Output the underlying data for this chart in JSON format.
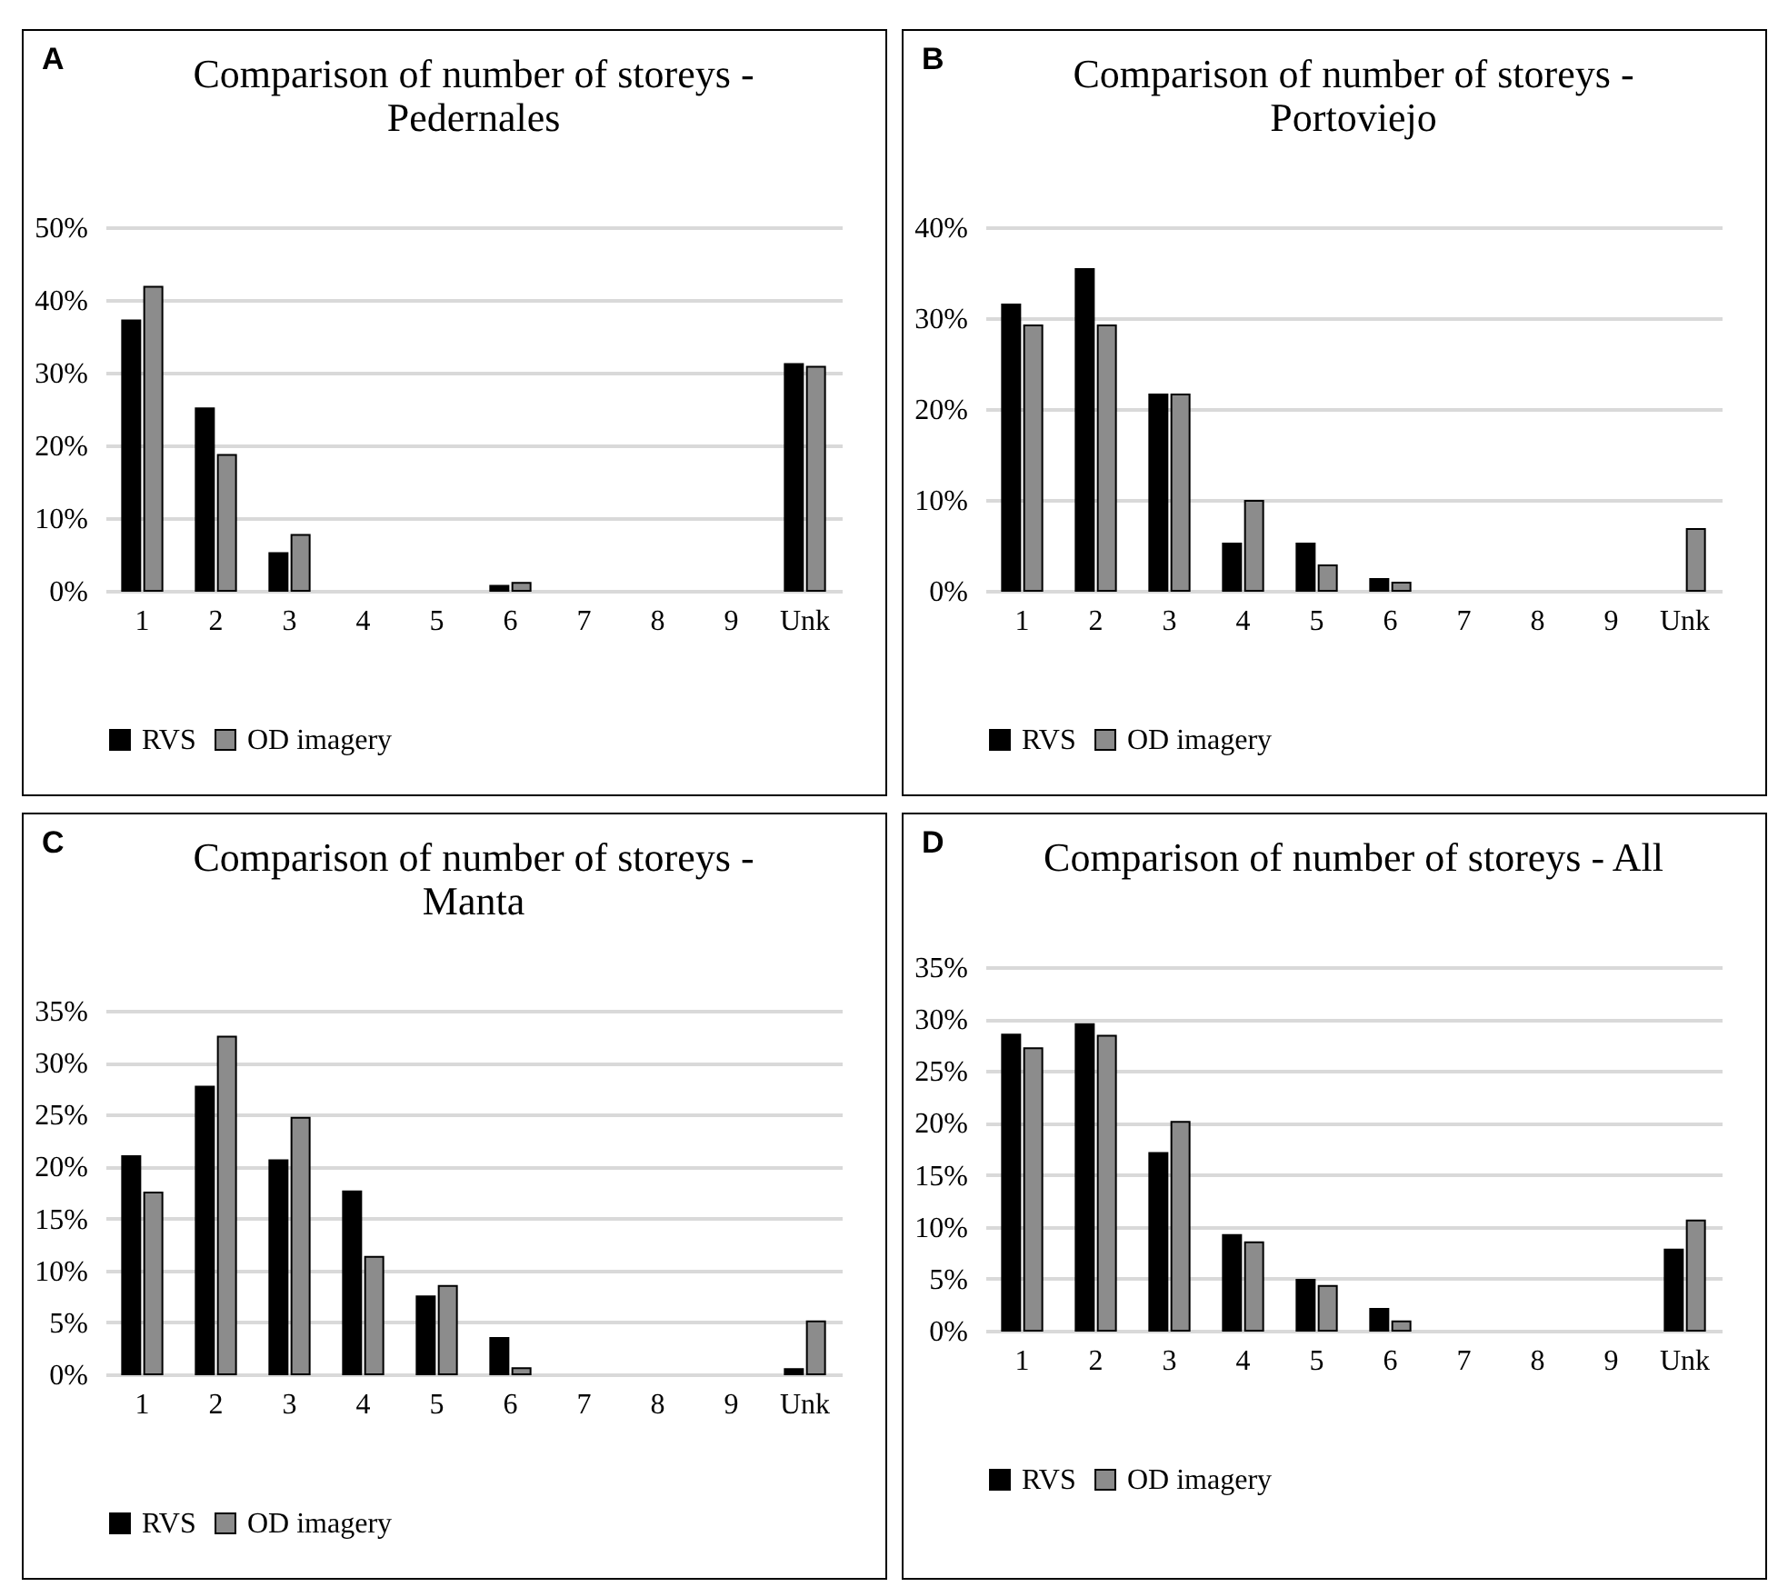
{
  "chart_data": [
    {
      "type": "bar",
      "title": "Comparison of number of storeys - Pedernales",
      "annotations": [
        "A"
      ],
      "categories": [
        "1",
        "2",
        "3",
        "4",
        "5",
        "6",
        "7",
        "8",
        "9",
        "Unk"
      ],
      "series": [
        {
          "name": "RVS",
          "color": "#000000",
          "values": [
            37.2,
            25.1,
            5.2,
            0,
            0,
            0.7,
            0,
            0,
            0,
            31.2
          ]
        },
        {
          "name": "OD imagery",
          "color": "#8c8c8c",
          "values": [
            41.8,
            18.7,
            7.7,
            0,
            0,
            1.1,
            0,
            0,
            0,
            30.8
          ]
        }
      ],
      "ylim": [
        0,
        50
      ],
      "yticks": [
        {
          "value": 0,
          "label": "0%"
        },
        {
          "value": 10,
          "label": "10%"
        },
        {
          "value": 20,
          "label": "20%"
        },
        {
          "value": 30,
          "label": "30%"
        },
        {
          "value": 40,
          "label": "40%"
        },
        {
          "value": 50,
          "label": "50%"
        }
      ],
      "grid": "y",
      "legend": "bottom"
    },
    {
      "type": "bar",
      "title": "Comparison of number of storeys - Portoviejo",
      "annotations": [
        "B"
      ],
      "categories": [
        "1",
        "2",
        "3",
        "4",
        "5",
        "6",
        "7",
        "8",
        "9",
        "Unk"
      ],
      "series": [
        {
          "name": "RVS",
          "color": "#000000",
          "values": [
            31.5,
            35.4,
            21.6,
            5.2,
            5.2,
            1.3,
            0,
            0,
            0,
            0
          ]
        },
        {
          "name": "OD imagery",
          "color": "#8c8c8c",
          "values": [
            29.2,
            29.2,
            21.6,
            9.9,
            2.8,
            0.9,
            0,
            0,
            0,
            6.8
          ]
        }
      ],
      "ylim": [
        0,
        40
      ],
      "yticks": [
        {
          "value": 0,
          "label": "0%"
        },
        {
          "value": 10,
          "label": "10%"
        },
        {
          "value": 20,
          "label": "20%"
        },
        {
          "value": 30,
          "label": "30%"
        },
        {
          "value": 40,
          "label": "40%"
        }
      ],
      "grid": "y",
      "legend": "bottom"
    },
    {
      "type": "bar",
      "title": "Comparison of number of storeys - Manta",
      "annotations": [
        "C"
      ],
      "categories": [
        "1",
        "2",
        "3",
        "4",
        "5",
        "6",
        "7",
        "8",
        "9",
        "Unk"
      ],
      "series": [
        {
          "name": "RVS",
          "color": "#000000",
          "values": [
            21.0,
            27.7,
            20.6,
            17.6,
            7.5,
            3.5,
            0,
            0,
            0,
            0.5
          ]
        },
        {
          "name": "OD imagery",
          "color": "#8c8c8c",
          "values": [
            17.5,
            32.5,
            24.7,
            11.3,
            8.5,
            0.6,
            0,
            0,
            0,
            5.1
          ]
        }
      ],
      "ylim": [
        0,
        35
      ],
      "yticks": [
        {
          "value": 0,
          "label": "0%"
        },
        {
          "value": 5,
          "label": "5%"
        },
        {
          "value": 10,
          "label": "10%"
        },
        {
          "value": 15,
          "label": "15%"
        },
        {
          "value": 20,
          "label": "20%"
        },
        {
          "value": 25,
          "label": "25%"
        },
        {
          "value": 30,
          "label": "30%"
        },
        {
          "value": 35,
          "label": "35%"
        }
      ],
      "grid": "y",
      "legend": "bottom"
    },
    {
      "type": "bar",
      "title": "Comparison of number of storeys - All",
      "annotations": [
        "D"
      ],
      "categories": [
        "1",
        "2",
        "3",
        "4",
        "5",
        "6",
        "7",
        "8",
        "9",
        "Unk"
      ],
      "series": [
        {
          "name": "RVS",
          "color": "#000000",
          "values": [
            28.5,
            29.5,
            17.1,
            9.2,
            4.9,
            2.1,
            0,
            0,
            0,
            7.8
          ]
        },
        {
          "name": "OD imagery",
          "color": "#8c8c8c",
          "values": [
            27.2,
            28.4,
            20.1,
            8.5,
            4.3,
            0.9,
            0,
            0,
            0,
            10.6
          ]
        }
      ],
      "ylim": [
        0,
        35
      ],
      "yticks": [
        {
          "value": 0,
          "label": "0%"
        },
        {
          "value": 5,
          "label": "5%"
        },
        {
          "value": 10,
          "label": "10%"
        },
        {
          "value": 15,
          "label": "15%"
        },
        {
          "value": 20,
          "label": "20%"
        },
        {
          "value": 25,
          "label": "25%"
        },
        {
          "value": 30,
          "label": "30%"
        },
        {
          "value": 35,
          "label": "35%"
        }
      ],
      "grid": "y",
      "legend": "bottom"
    }
  ]
}
